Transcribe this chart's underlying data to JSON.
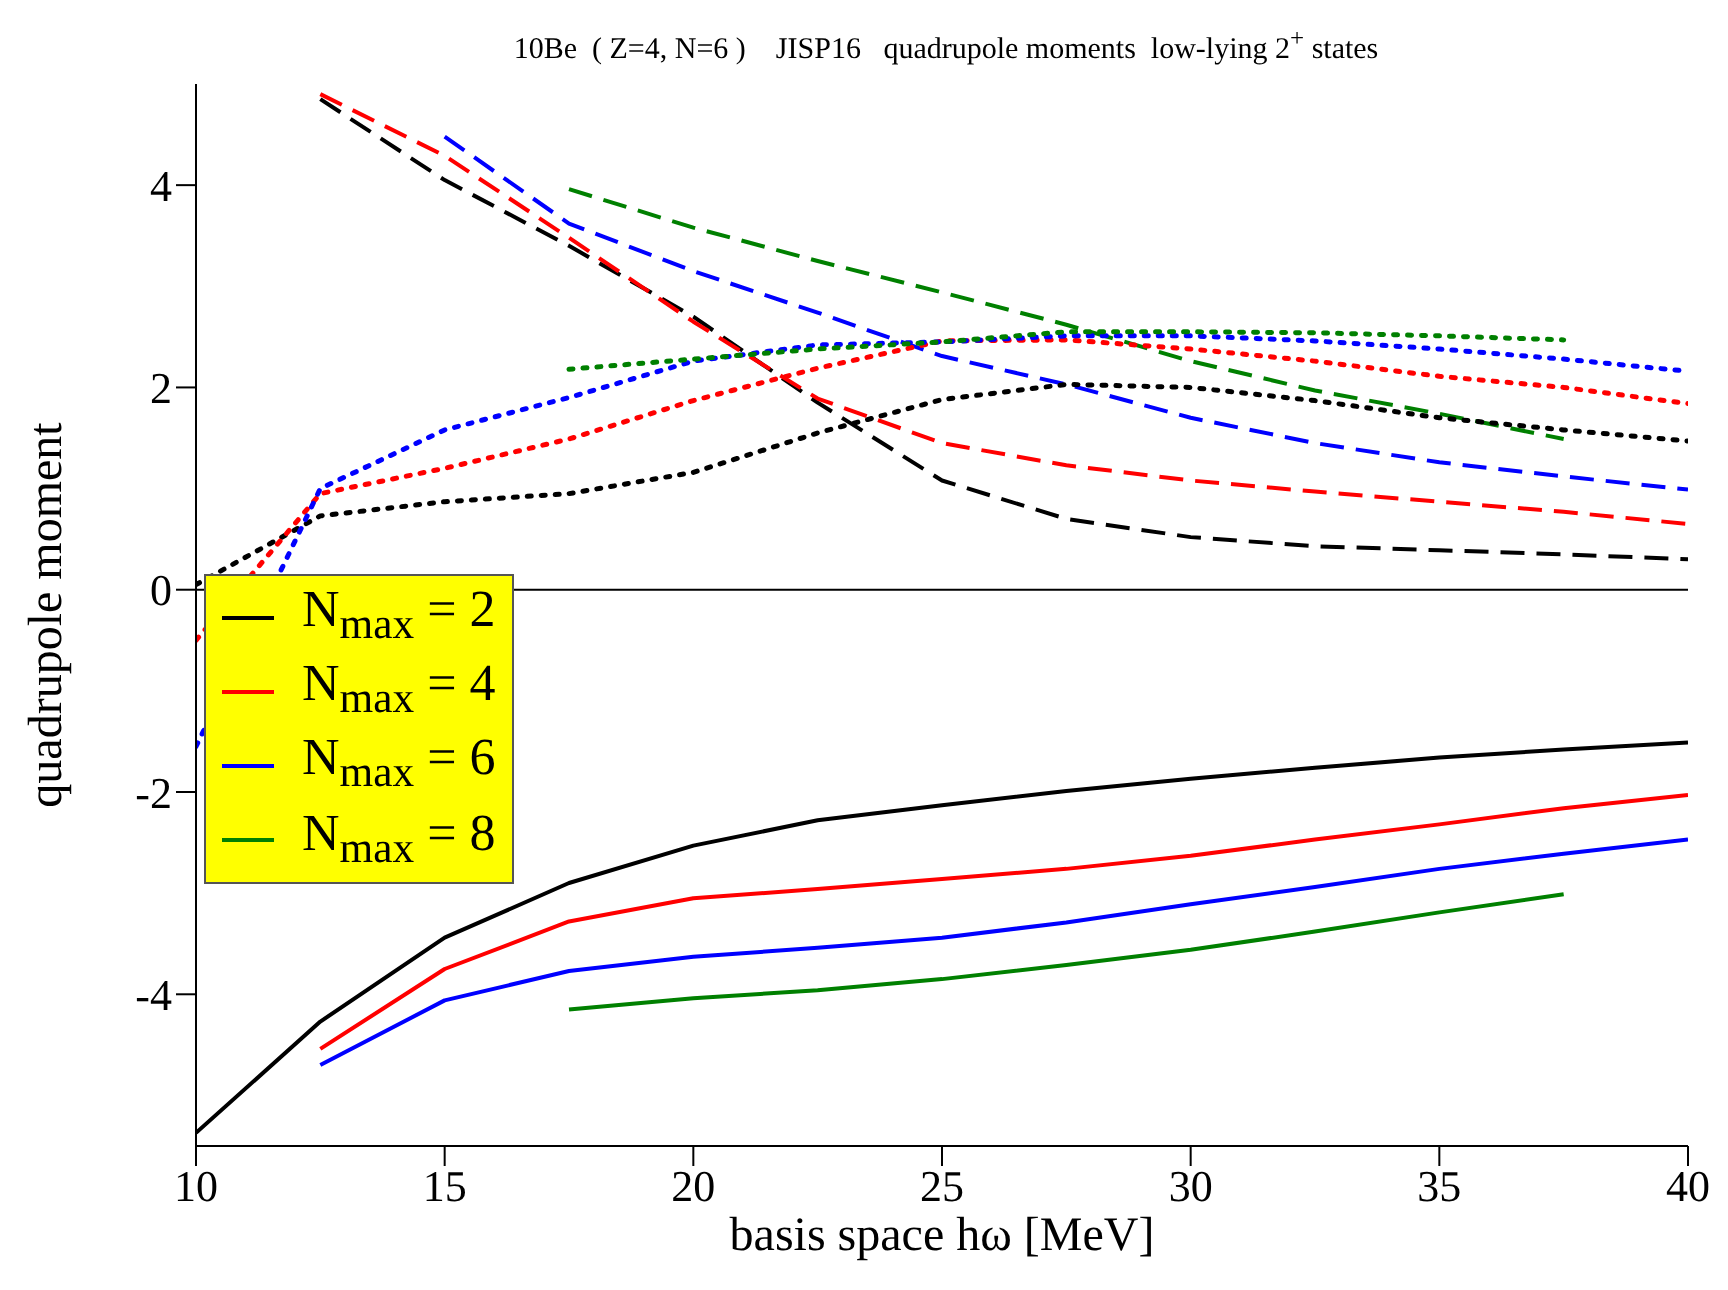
{
  "chart_data": {
    "type": "line",
    "title": "10Be  ( Z=4, N=6 )    JISP16   quadrupole moments  low-lying 2$^{+}$ states",
    "xlabel": "basis space hω [MeV]",
    "ylabel": "quadrupole moment",
    "x": [
      10,
      12.5,
      15,
      17.5,
      20,
      22.5,
      25,
      27.5,
      30,
      32.5,
      35,
      37.5,
      40
    ],
    "series": [
      {
        "name": "N$_{max}$ = 2",
        "color": "#000000",
        "line_style": "solid",
        "values": [
          -5.37,
          -4.27,
          -3.44,
          -2.9,
          -2.53,
          -2.28,
          -2.13,
          -1.99,
          -1.87,
          -1.76,
          -1.66,
          -1.58,
          -1.51
        ]
      },
      {
        "name": "N$_{max}$ = 4",
        "color": "#ff0000",
        "line_style": "solid",
        "values": [
          null,
          -4.54,
          -3.75,
          -3.28,
          -3.05,
          -2.96,
          -2.86,
          -2.76,
          -2.63,
          -2.47,
          -2.32,
          -2.16,
          -2.03
        ]
      },
      {
        "name": "N$_{max}$ = 6",
        "color": "#0000ff",
        "line_style": "solid",
        "values": [
          null,
          -4.7,
          -4.06,
          -3.77,
          -3.63,
          -3.54,
          -3.44,
          -3.29,
          -3.11,
          -2.94,
          -2.76,
          -2.61,
          -2.47
        ]
      },
      {
        "name": "N$_{max}$ = 8",
        "color": "#008000",
        "line_style": "solid",
        "values": [
          null,
          null,
          null,
          -4.15,
          -4.04,
          -3.96,
          -3.85,
          -3.71,
          -3.56,
          -3.38,
          -3.19,
          -3.01,
          null
        ]
      },
      {
        "color": "#000000",
        "line_style": "dashed",
        "values": [
          null,
          4.85,
          4.05,
          3.4,
          2.7,
          1.85,
          1.08,
          0.7,
          0.52,
          0.43,
          0.39,
          0.35,
          0.3
        ]
      },
      {
        "color": "#ff0000",
        "line_style": "dashed",
        "values": [
          null,
          4.9,
          4.29,
          3.48,
          2.65,
          1.89,
          1.45,
          1.23,
          1.08,
          0.97,
          0.87,
          0.77,
          0.65
        ]
      },
      {
        "color": "#0000ff",
        "line_style": "dashed",
        "values": [
          null,
          null,
          4.48,
          3.62,
          3.15,
          2.74,
          2.31,
          2.03,
          1.7,
          1.45,
          1.26,
          1.12,
          0.99
        ]
      },
      {
        "color": "#008000",
        "line_style": "dashed",
        "values": [
          null,
          null,
          null,
          3.96,
          3.58,
          3.25,
          2.94,
          2.62,
          2.26,
          1.97,
          1.74,
          1.49,
          null
        ]
      },
      {
        "color": "#000000",
        "line_style": "dotted",
        "values": [
          0.05,
          0.73,
          0.87,
          0.95,
          1.16,
          1.55,
          1.88,
          2.03,
          2.0,
          1.87,
          1.7,
          1.58,
          1.47
        ]
      },
      {
        "color": "#ff0000",
        "line_style": "dotted",
        "values": [
          -0.5,
          0.95,
          1.2,
          1.49,
          1.87,
          2.19,
          2.46,
          2.47,
          2.38,
          2.26,
          2.11,
          2.0,
          1.84
        ]
      },
      {
        "color": "#0000ff",
        "line_style": "dotted",
        "values": [
          -1.55,
          1.0,
          1.58,
          1.9,
          2.26,
          2.42,
          2.45,
          2.51,
          2.51,
          2.46,
          2.38,
          2.28,
          2.16
        ]
      },
      {
        "color": "#008000",
        "line_style": "dotted",
        "values": [
          null,
          null,
          null,
          2.18,
          2.28,
          2.38,
          2.45,
          2.55,
          2.55,
          2.54,
          2.51,
          2.47,
          null
        ]
      }
    ],
    "xlim": [
      10,
      40
    ],
    "xticks": [
      10,
      15,
      20,
      25,
      30,
      35,
      40
    ],
    "ylim": [
      -5.5,
      5
    ],
    "yticks": [
      -4,
      -2,
      0,
      2,
      4
    ],
    "ref_lines": [
      {
        "axis": "y",
        "value": 0,
        "color": "#000000"
      }
    ],
    "grid": false,
    "legend": "left"
  }
}
